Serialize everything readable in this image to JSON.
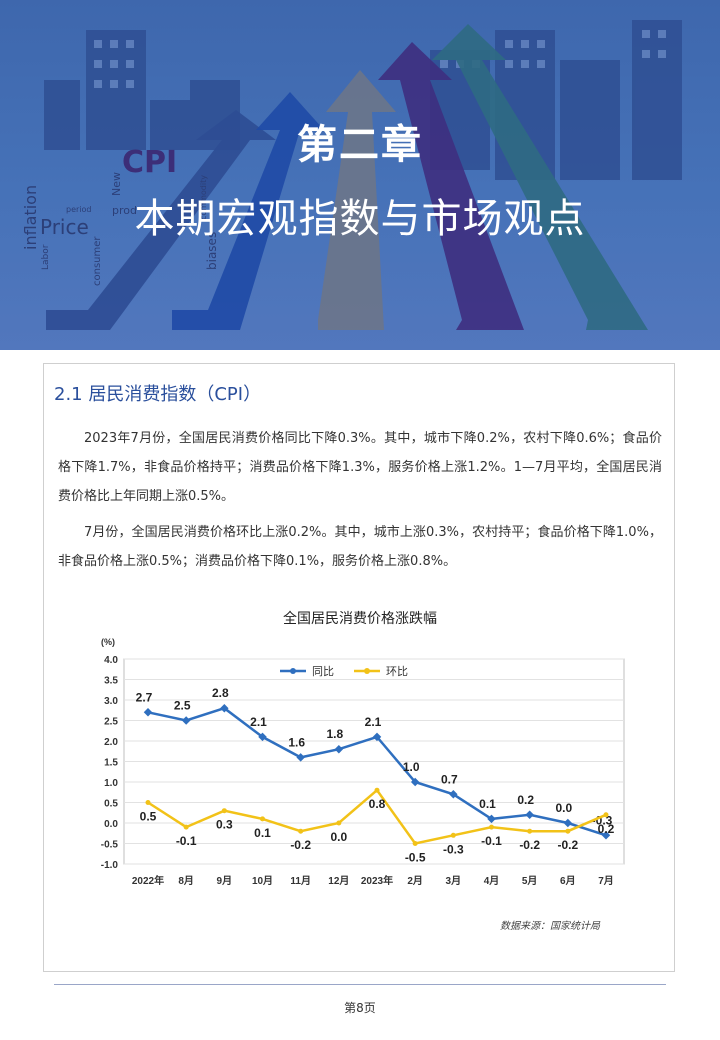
{
  "banner": {
    "chapter_no": "第二章",
    "chapter_title": "本期宏观指数与市场观点",
    "decor_words": [
      "CPI",
      "Price",
      "inflation",
      "consumer",
      "biases",
      "Labor",
      "period",
      "New",
      "prod",
      "commodity"
    ]
  },
  "section": {
    "title": "2.1 居民消费指数（CPI）",
    "paragraphs": [
      "2023年7月份，全国居民消费价格同比下降0.3%。其中，城市下降0.2%，农村下降0.6%；食品价格下降1.7%，非食品价格持平；消费品价格下降1.3%，服务价格上涨1.2%。1—7月平均，全国居民消费价格比上年同期上涨0.5%。",
      "7月份，全国居民消费价格环比上涨0.2%。其中，城市上涨0.3%，农村持平；食品价格下降1.0%，非食品价格上涨0.5%；消费品价格下降0.1%，服务价格上涨0.8%。"
    ]
  },
  "chart_data": {
    "type": "line",
    "title": "全国居民消费价格涨跌幅",
    "unit": "(%)",
    "categories": [
      "2022年",
      "8月",
      "9月",
      "10月",
      "11月",
      "12月",
      "2023年",
      "2月",
      "3月",
      "4月",
      "5月",
      "6月",
      "7月"
    ],
    "series": [
      {
        "name": "同比",
        "color": "#2f6fbf",
        "values": [
          2.7,
          2.5,
          2.8,
          2.1,
          1.6,
          1.8,
          2.1,
          1.0,
          0.7,
          0.1,
          0.2,
          0.0,
          -0.3
        ]
      },
      {
        "name": "环比",
        "color": "#f2c218",
        "values": [
          0.5,
          -0.1,
          0.3,
          0.1,
          -0.2,
          0.0,
          0.8,
          -0.5,
          -0.3,
          -0.1,
          -0.2,
          -0.2,
          0.2
        ]
      }
    ],
    "yticks": [
      "4.0",
      "3.5",
      "3.0",
      "2.5",
      "2.0",
      "1.5",
      "1.0",
      "0.5",
      "0.0",
      "-0.5",
      "-1.0"
    ],
    "ylim": [
      -1.0,
      4.0
    ],
    "grid": true,
    "legend": "top-center"
  },
  "source": "数据来源：国家统计局",
  "footer": {
    "page": "第8页"
  }
}
